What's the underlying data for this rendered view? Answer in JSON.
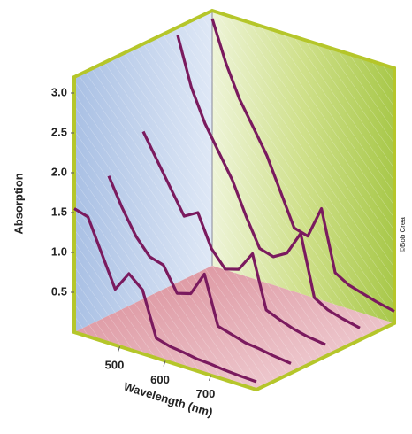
{
  "chart_data": {
    "type": "waterfall3d",
    "y_label": "Absorption",
    "x_label": "Wavelength (nm)",
    "credit": "©Bob Crea",
    "xlim": [
      400,
      800
    ],
    "ylim": [
      0,
      3.2
    ],
    "xticks": [
      500,
      600,
      700
    ],
    "yticks": [
      0.5,
      {
        "value": 1,
        "label": "1.0"
      },
      1.5,
      {
        "value": 2,
        "label": "2.0"
      },
      2.5,
      {
        "value": 3,
        "label": "3.0"
      }
    ],
    "x": [
      400,
      430,
      460,
      490,
      520,
      550,
      580,
      610,
      640,
      670,
      700,
      730,
      760,
      800
    ],
    "color": "#7a1a5e",
    "series": [
      {
        "values": [
          1.55,
          1.5,
          1.1,
          0.7,
          0.95,
          0.8,
          0.25,
          0.2,
          0.18,
          0.15,
          0.14,
          0.12,
          0.11,
          0.1
        ]
      },
      {
        "values": [
          1.75,
          1.4,
          1.1,
          0.9,
          0.85,
          0.55,
          0.6,
          0.9,
          0.3,
          0.25,
          0.2,
          0.18,
          0.15,
          0.12
        ]
      },
      {
        "values": [
          2.1,
          1.8,
          1.5,
          1.2,
          1.3,
          0.9,
          0.7,
          0.75,
          1.0,
          0.35,
          0.28,
          0.22,
          0.18,
          0.15
        ]
      },
      {
        "values": [
          3.1,
          2.5,
          2.1,
          1.8,
          1.5,
          1.1,
          0.75,
          0.7,
          0.8,
          1.1,
          0.35,
          0.25,
          0.2,
          0.15
        ]
      },
      {
        "values": [
          3.1,
          2.6,
          2.2,
          1.9,
          1.6,
          1.2,
          0.8,
          0.75,
          1.15,
          0.4,
          0.3,
          0.25,
          0.2,
          0.15
        ]
      }
    ]
  }
}
